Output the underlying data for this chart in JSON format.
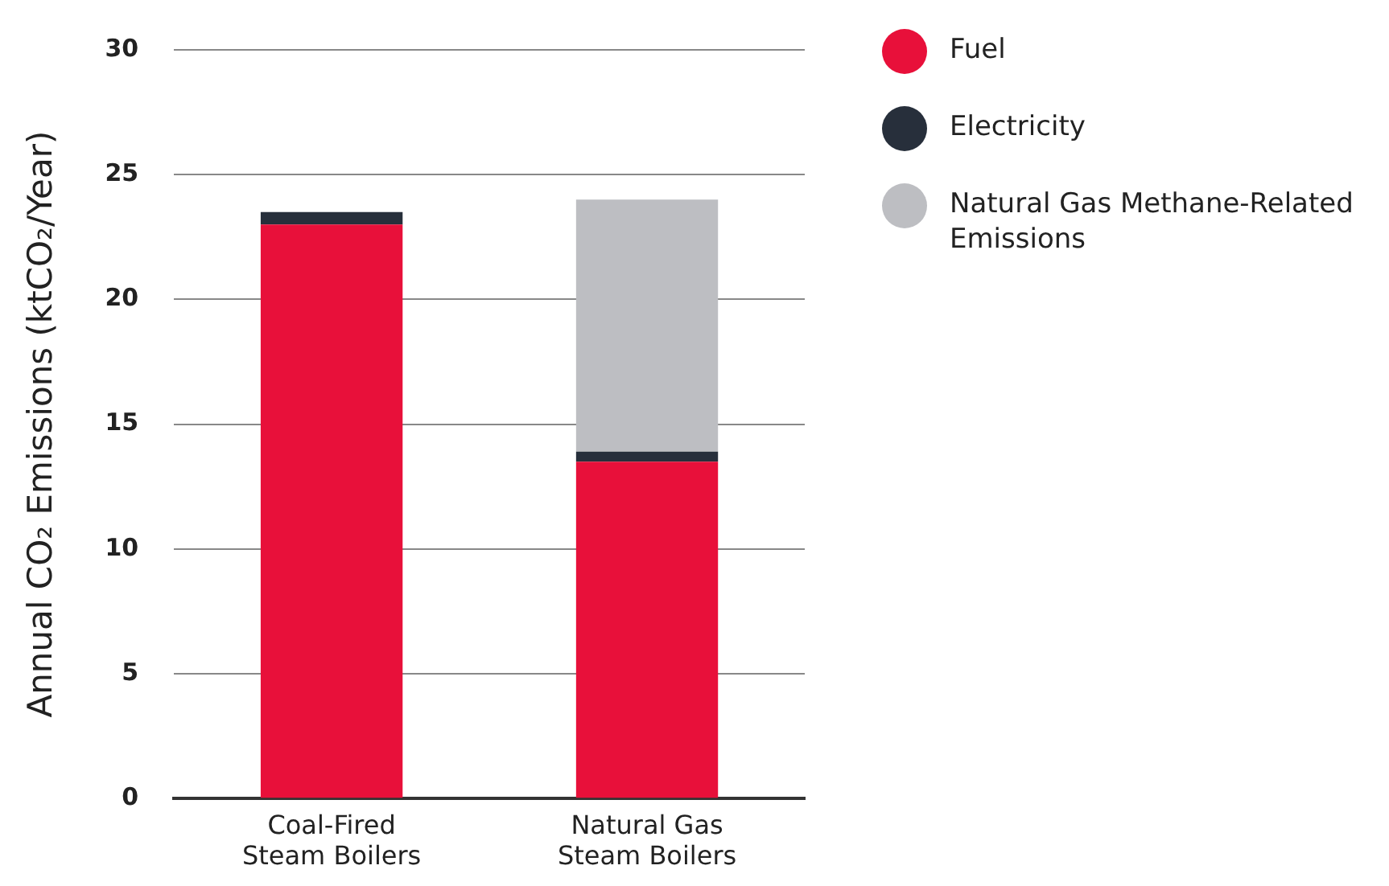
{
  "chart_data": {
    "type": "bar",
    "stacked": true,
    "ylabel": "Annual CO₂ Emissions (ktCO₂/Year)",
    "categories": [
      "Coal-Fired Steam Boilers",
      "Natural Gas Steam Boilers"
    ],
    "series": [
      {
        "name": "Fuel",
        "color": "#e8103a",
        "values": [
          23.0,
          13.5
        ]
      },
      {
        "name": "Electricity",
        "color": "#272f3b",
        "values": [
          0.5,
          0.4
        ]
      },
      {
        "name": "Natural Gas Methane-Related Emissions",
        "color": "#bdbec2",
        "values": [
          0,
          10.1
        ]
      }
    ],
    "ylim": [
      0,
      30
    ],
    "yticks": [
      0,
      5,
      10,
      15,
      20,
      25,
      30
    ],
    "grid": "y",
    "legend": "top right"
  }
}
